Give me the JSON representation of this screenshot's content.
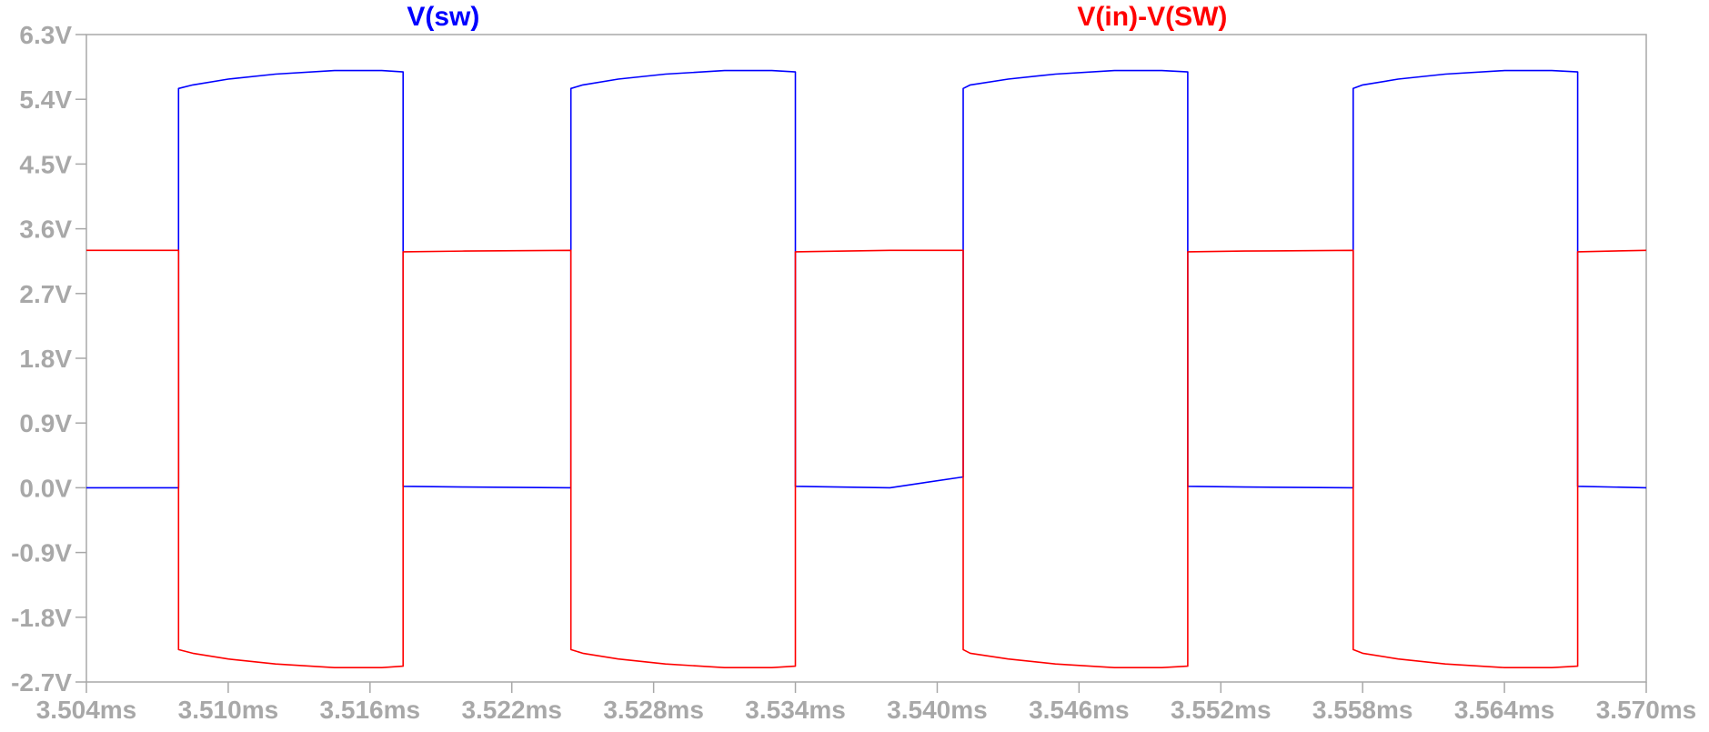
{
  "chart_data": {
    "type": "line",
    "title": "",
    "xlabel": "",
    "ylabel": "",
    "xlim": [
      3.504,
      3.57
    ],
    "ylim": [
      -2.7,
      6.3
    ],
    "x_ticks": [
      "3.504ms",
      "3.510ms",
      "3.516ms",
      "3.522ms",
      "3.528ms",
      "3.534ms",
      "3.540ms",
      "3.546ms",
      "3.552ms",
      "3.558ms",
      "3.564ms",
      "3.570ms"
    ],
    "x_tick_values": [
      3.504,
      3.51,
      3.516,
      3.522,
      3.528,
      3.534,
      3.54,
      3.546,
      3.552,
      3.558,
      3.564,
      3.57
    ],
    "y_ticks": [
      "6.3V",
      "5.4V",
      "4.5V",
      "3.6V",
      "2.7V",
      "1.8V",
      "0.9V",
      "0.0V",
      "-0.9V",
      "-1.8V",
      "-2.7V"
    ],
    "y_tick_values": [
      6.3,
      5.4,
      4.5,
      3.6,
      2.7,
      1.8,
      0.9,
      0.0,
      -0.9,
      -1.8,
      -2.7
    ],
    "grid": false,
    "series": [
      {
        "name": "V(sw)",
        "color": "#0000ff",
        "x": [
          3.504,
          3.5079,
          3.5079,
          3.5085,
          3.51,
          3.512,
          3.5145,
          3.5165,
          3.5174,
          3.5174,
          3.52,
          3.5245,
          3.5245,
          3.525,
          3.5265,
          3.5285,
          3.531,
          3.533,
          3.534,
          3.534,
          3.538,
          3.5411,
          3.5411,
          3.5411,
          3.5414,
          3.543,
          3.545,
          3.5475,
          3.5495,
          3.5506,
          3.5506,
          3.553,
          3.5576,
          3.5576,
          3.558,
          3.5595,
          3.5615,
          3.564,
          3.566,
          3.5671,
          3.5671,
          3.57
        ],
        "y": [
          0.0,
          0.0,
          5.55,
          5.6,
          5.68,
          5.75,
          5.8,
          5.8,
          5.78,
          0.02,
          0.01,
          0.0,
          5.55,
          5.6,
          5.68,
          5.75,
          5.8,
          5.8,
          5.78,
          0.02,
          0.0,
          0.15,
          3.1,
          5.55,
          5.6,
          5.68,
          5.75,
          5.8,
          5.8,
          5.78,
          0.02,
          0.01,
          0.0,
          5.55,
          5.6,
          5.68,
          5.75,
          5.8,
          5.8,
          5.78,
          0.02,
          0.0
        ]
      },
      {
        "name": "V(in)-V(SW)",
        "color": "#ff0000",
        "x": [
          3.504,
          3.5079,
          3.5079,
          3.5085,
          3.51,
          3.512,
          3.5145,
          3.5165,
          3.5174,
          3.5174,
          3.52,
          3.5245,
          3.5245,
          3.525,
          3.5265,
          3.5285,
          3.531,
          3.533,
          3.534,
          3.534,
          3.538,
          3.5411,
          3.5411,
          3.5414,
          3.543,
          3.545,
          3.5475,
          3.5495,
          3.5506,
          3.5506,
          3.553,
          3.5576,
          3.5576,
          3.558,
          3.5595,
          3.5615,
          3.564,
          3.566,
          3.5671,
          3.5671,
          3.57
        ],
        "y": [
          3.3,
          3.3,
          -2.25,
          -2.3,
          -2.38,
          -2.45,
          -2.5,
          -2.5,
          -2.48,
          3.28,
          3.29,
          3.3,
          -2.25,
          -2.3,
          -2.38,
          -2.45,
          -2.5,
          -2.5,
          -2.48,
          3.28,
          3.3,
          3.3,
          -2.25,
          -2.3,
          -2.38,
          -2.45,
          -2.5,
          -2.5,
          -2.48,
          3.28,
          3.29,
          3.3,
          -2.25,
          -2.3,
          -2.38,
          -2.45,
          -2.5,
          -2.5,
          -2.48,
          3.28,
          3.3
        ]
      }
    ],
    "legend_placement": "top"
  }
}
